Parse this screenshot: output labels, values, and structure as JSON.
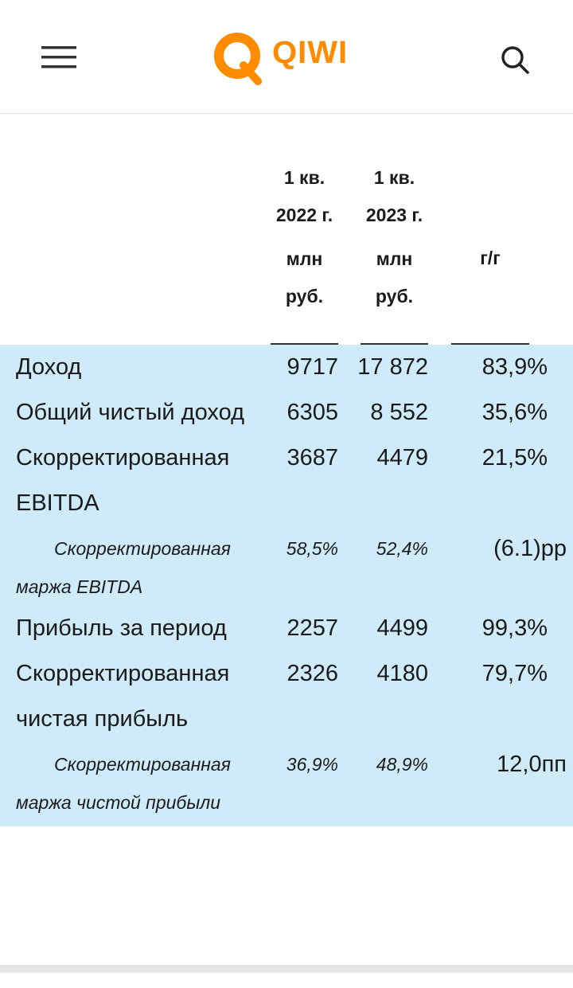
{
  "header": {
    "logo": "QIWI"
  },
  "table": {
    "columns": [
      {
        "period": "1 кв. 2022 г.",
        "unit": "млн руб."
      },
      {
        "period": "1 кв. 2023 г.",
        "unit": "млн руб."
      },
      {
        "period": "г/г"
      }
    ],
    "rows": [
      [
        "Доход",
        "9717",
        "17 872",
        "83,9%"
      ],
      [
        "Общий чистый доход",
        "6305",
        "8 552",
        "35,6%"
      ],
      [
        "Скорректированная EBITDA",
        "3687",
        "4479",
        "21,5%"
      ],
      [
        "Скорректированная маржа EBITDA",
        "58,5%",
        "52,4%",
        "(6.1)pp"
      ],
      [
        "Прибыль за период",
        "2257",
        "4499",
        "99,3%"
      ],
      [
        "Скорректированная чистая прибыль",
        "2326",
        "4180",
        "79,7%"
      ],
      [
        "Скорректированная маржа чистой прибыли",
        "36,9%",
        "48,9%",
        "12,0пп"
      ]
    ]
  }
}
